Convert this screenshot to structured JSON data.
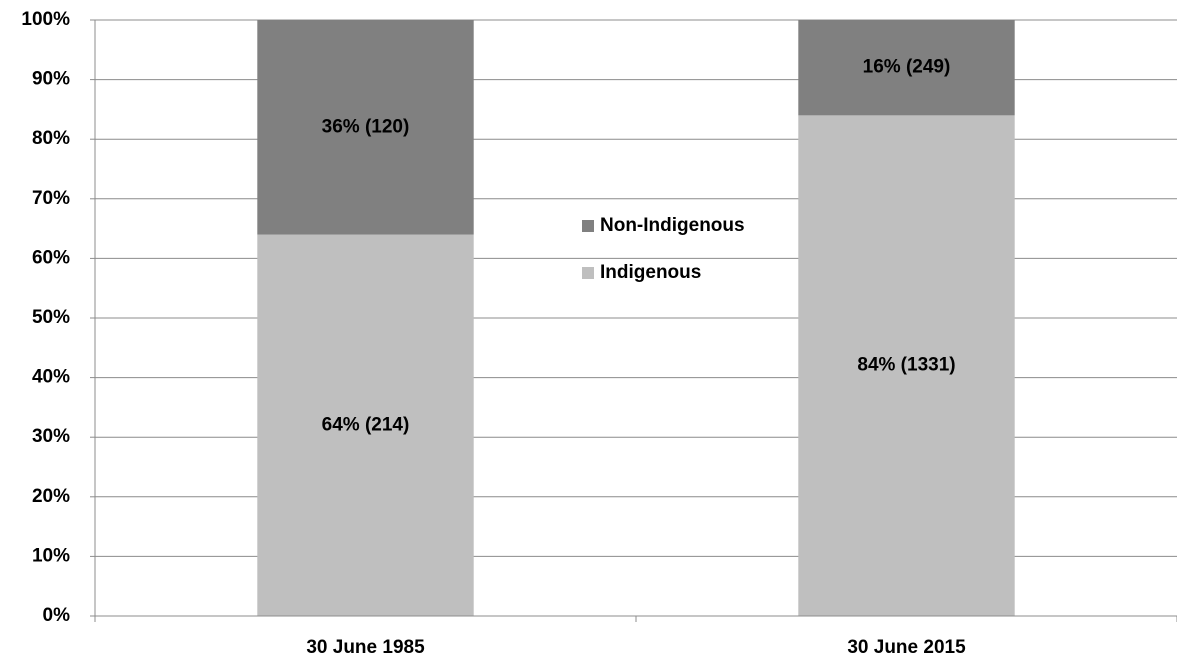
{
  "chart_data": {
    "type": "stacked_bar",
    "categories": [
      "30 June 1985",
      "30 June 2015"
    ],
    "series": [
      {
        "name": "Indigenous",
        "color": "#bfbfbf",
        "values": [
          64,
          84
        ],
        "value_labels": [
          "64% (214)",
          "84% (1331)"
        ]
      },
      {
        "name": "Non-Indigenous",
        "color": "#808080",
        "values": [
          36,
          16
        ],
        "value_labels": [
          "36% (120)",
          "16% (249)"
        ]
      }
    ],
    "ylim": [
      0,
      100
    ],
    "yticks": [
      {
        "value": 0,
        "label": "0%"
      },
      {
        "value": 10,
        "label": "10%"
      },
      {
        "value": 20,
        "label": "20%"
      },
      {
        "value": 30,
        "label": "30%"
      },
      {
        "value": 40,
        "label": "40%"
      },
      {
        "value": 50,
        "label": "50%"
      },
      {
        "value": 60,
        "label": "60%"
      },
      {
        "value": 70,
        "label": "70%"
      },
      {
        "value": 80,
        "label": "80%"
      },
      {
        "value": 90,
        "label": "90%"
      },
      {
        "value": 100,
        "label": "100%"
      }
    ],
    "grid": true,
    "legend": "center"
  }
}
